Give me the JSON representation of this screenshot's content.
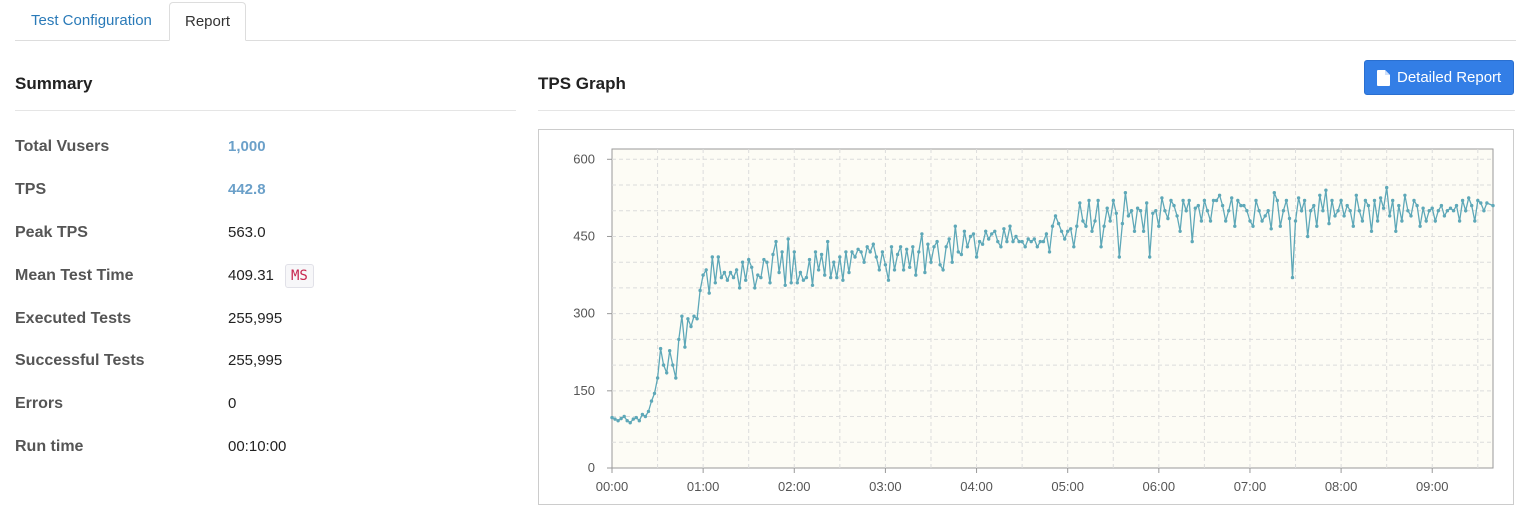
{
  "tabs": [
    {
      "label": "Test Configuration",
      "active": false
    },
    {
      "label": "Report",
      "active": true
    }
  ],
  "summary": {
    "title": "Summary",
    "rows": [
      {
        "label": "Total Vusers",
        "value": "1,000"
      },
      {
        "label": "TPS",
        "value": "442.8"
      },
      {
        "label": "Peak TPS",
        "value": "563.0"
      },
      {
        "label": "Mean Test Time",
        "value": "409.31",
        "unit": "MS"
      },
      {
        "label": "Executed Tests",
        "value": "255,995"
      },
      {
        "label": "Successful Tests",
        "value": "255,995"
      },
      {
        "label": "Errors",
        "value": "0"
      },
      {
        "label": "Run time",
        "value": "00:10:00"
      }
    ]
  },
  "graph": {
    "title": "TPS Graph",
    "detail_button_label": "Detailed Report",
    "detail_button_icon": "file-icon"
  },
  "colors": {
    "accent": "#337ee6",
    "link_value": "#6ba0c9",
    "series_line": "#5ea8b8",
    "plot_background": "#fdfcf5",
    "unit_badge_text": "#c7254e"
  },
  "chart_data": {
    "type": "line",
    "title": "",
    "xlabel": "",
    "ylabel": "",
    "x_tick_labels": [
      "00:00",
      "01:00",
      "02:00",
      "03:00",
      "04:00",
      "05:00",
      "06:00",
      "07:00",
      "08:00",
      "09:00"
    ],
    "x_unit": "seconds",
    "xlim": [
      0,
      580
    ],
    "ylim": [
      0,
      620
    ],
    "y_ticks": [
      0,
      150,
      300,
      450,
      600
    ],
    "grid": true,
    "legend": "none",
    "series": [
      {
        "name": "",
        "values": [
          [
            0,
            98
          ],
          [
            2,
            95
          ],
          [
            4,
            92
          ],
          [
            6,
            96
          ],
          [
            8,
            100
          ],
          [
            10,
            92
          ],
          [
            12,
            88
          ],
          [
            14,
            95
          ],
          [
            16,
            98
          ],
          [
            18,
            92
          ],
          [
            20,
            104
          ],
          [
            22,
            100
          ],
          [
            24,
            110
          ],
          [
            26,
            130
          ],
          [
            28,
            145
          ],
          [
            30,
            175
          ],
          [
            32,
            232
          ],
          [
            34,
            200
          ],
          [
            36,
            185
          ],
          [
            38,
            228
          ],
          [
            40,
            200
          ],
          [
            42,
            175
          ],
          [
            44,
            250
          ],
          [
            46,
            295
          ],
          [
            48,
            235
          ],
          [
            50,
            290
          ],
          [
            52,
            275
          ],
          [
            54,
            295
          ],
          [
            56,
            290
          ],
          [
            58,
            345
          ],
          [
            60,
            375
          ],
          [
            62,
            385
          ],
          [
            64,
            340
          ],
          [
            66,
            410
          ],
          [
            68,
            360
          ],
          [
            70,
            410
          ],
          [
            72,
            370
          ],
          [
            74,
            380
          ],
          [
            76,
            365
          ],
          [
            78,
            380
          ],
          [
            80,
            370
          ],
          [
            82,
            385
          ],
          [
            84,
            350
          ],
          [
            86,
            400
          ],
          [
            88,
            365
          ],
          [
            90,
            405
          ],
          [
            92,
            390
          ],
          [
            94,
            350
          ],
          [
            96,
            375
          ],
          [
            98,
            370
          ],
          [
            100,
            405
          ],
          [
            102,
            400
          ],
          [
            104,
            360
          ],
          [
            106,
            415
          ],
          [
            108,
            440
          ],
          [
            110,
            380
          ],
          [
            112,
            420
          ],
          [
            114,
            355
          ],
          [
            116,
            445
          ],
          [
            118,
            360
          ],
          [
            120,
            420
          ],
          [
            122,
            360
          ],
          [
            124,
            380
          ],
          [
            126,
            365
          ],
          [
            128,
            370
          ],
          [
            130,
            405
          ],
          [
            132,
            355
          ],
          [
            134,
            420
          ],
          [
            136,
            385
          ],
          [
            138,
            415
          ],
          [
            140,
            375
          ],
          [
            142,
            440
          ],
          [
            144,
            370
          ],
          [
            146,
            400
          ],
          [
            148,
            370
          ],
          [
            150,
            410
          ],
          [
            152,
            365
          ],
          [
            154,
            420
          ],
          [
            156,
            380
          ],
          [
            158,
            420
          ],
          [
            160,
            410
          ],
          [
            162,
            425
          ],
          [
            164,
            420
          ],
          [
            166,
            400
          ],
          [
            168,
            430
          ],
          [
            170,
            420
          ],
          [
            172,
            435
          ],
          [
            174,
            410
          ],
          [
            176,
            385
          ],
          [
            178,
            420
          ],
          [
            180,
            395
          ],
          [
            182,
            365
          ],
          [
            184,
            430
          ],
          [
            186,
            385
          ],
          [
            188,
            415
          ],
          [
            190,
            430
          ],
          [
            192,
            385
          ],
          [
            194,
            425
          ],
          [
            196,
            390
          ],
          [
            198,
            430
          ],
          [
            200,
            375
          ],
          [
            202,
            420
          ],
          [
            204,
            455
          ],
          [
            206,
            380
          ],
          [
            208,
            435
          ],
          [
            210,
            400
          ],
          [
            212,
            430
          ],
          [
            214,
            440
          ],
          [
            216,
            395
          ],
          [
            218,
            385
          ],
          [
            220,
            430
          ],
          [
            222,
            445
          ],
          [
            224,
            400
          ],
          [
            226,
            470
          ],
          [
            228,
            420
          ],
          [
            230,
            415
          ],
          [
            232,
            460
          ],
          [
            234,
            430
          ],
          [
            236,
            450
          ],
          [
            238,
            455
          ],
          [
            240,
            410
          ],
          [
            242,
            440
          ],
          [
            244,
            435
          ],
          [
            246,
            460
          ],
          [
            248,
            445
          ],
          [
            250,
            455
          ],
          [
            252,
            460
          ],
          [
            254,
            440
          ],
          [
            256,
            430
          ],
          [
            258,
            465
          ],
          [
            260,
            440
          ],
          [
            262,
            470
          ],
          [
            264,
            440
          ],
          [
            266,
            450
          ],
          [
            268,
            440
          ],
          [
            270,
            440
          ],
          [
            272,
            430
          ],
          [
            274,
            445
          ],
          [
            276,
            440
          ],
          [
            278,
            445
          ],
          [
            280,
            430
          ],
          [
            282,
            440
          ],
          [
            284,
            440
          ],
          [
            286,
            455
          ],
          [
            288,
            420
          ],
          [
            290,
            470
          ],
          [
            292,
            490
          ],
          [
            294,
            475
          ],
          [
            296,
            460
          ],
          [
            298,
            445
          ],
          [
            300,
            460
          ],
          [
            302,
            465
          ],
          [
            304,
            430
          ],
          [
            306,
            470
          ],
          [
            308,
            515
          ],
          [
            310,
            480
          ],
          [
            312,
            470
          ],
          [
            314,
            520
          ],
          [
            316,
            460
          ],
          [
            318,
            480
          ],
          [
            320,
            520
          ],
          [
            322,
            430
          ],
          [
            324,
            470
          ],
          [
            326,
            505
          ],
          [
            328,
            480
          ],
          [
            330,
            520
          ],
          [
            332,
            495
          ],
          [
            334,
            410
          ],
          [
            336,
            475
          ],
          [
            338,
            535
          ],
          [
            340,
            490
          ],
          [
            342,
            500
          ],
          [
            344,
            460
          ],
          [
            346,
            505
          ],
          [
            348,
            500
          ],
          [
            350,
            460
          ],
          [
            352,
            515
          ],
          [
            354,
            410
          ],
          [
            356,
            495
          ],
          [
            358,
            500
          ],
          [
            360,
            470
          ],
          [
            362,
            525
          ],
          [
            364,
            500
          ],
          [
            366,
            485
          ],
          [
            368,
            520
          ],
          [
            370,
            510
          ],
          [
            372,
            490
          ],
          [
            374,
            460
          ],
          [
            376,
            520
          ],
          [
            378,
            500
          ],
          [
            380,
            520
          ],
          [
            382,
            440
          ],
          [
            384,
            505
          ],
          [
            386,
            510
          ],
          [
            388,
            480
          ],
          [
            390,
            520
          ],
          [
            392,
            500
          ],
          [
            394,
            480
          ],
          [
            396,
            520
          ],
          [
            398,
            520
          ],
          [
            400,
            530
          ],
          [
            402,
            510
          ],
          [
            404,
            480
          ],
          [
            406,
            500
          ],
          [
            408,
            525
          ],
          [
            410,
            470
          ],
          [
            412,
            520
          ],
          [
            414,
            510
          ],
          [
            416,
            510
          ],
          [
            418,
            500
          ],
          [
            420,
            480
          ],
          [
            422,
            470
          ],
          [
            424,
            520
          ],
          [
            426,
            500
          ],
          [
            428,
            480
          ],
          [
            430,
            490
          ],
          [
            432,
            500
          ],
          [
            434,
            465
          ],
          [
            436,
            535
          ],
          [
            438,
            520
          ],
          [
            440,
            470
          ],
          [
            442,
            500
          ],
          [
            444,
            520
          ],
          [
            446,
            485
          ],
          [
            448,
            370
          ],
          [
            450,
            480
          ],
          [
            452,
            525
          ],
          [
            454,
            500
          ],
          [
            456,
            520
          ],
          [
            458,
            450
          ],
          [
            460,
            500
          ],
          [
            462,
            510
          ],
          [
            464,
            470
          ],
          [
            466,
            530
          ],
          [
            468,
            500
          ],
          [
            470,
            540
          ],
          [
            472,
            475
          ],
          [
            474,
            520
          ],
          [
            476,
            490
          ],
          [
            478,
            500
          ],
          [
            480,
            520
          ],
          [
            482,
            490
          ],
          [
            484,
            510
          ],
          [
            486,
            500
          ],
          [
            488,
            470
          ],
          [
            490,
            530
          ],
          [
            492,
            500
          ],
          [
            494,
            480
          ],
          [
            496,
            520
          ],
          [
            498,
            510
          ],
          [
            500,
            460
          ],
          [
            502,
            520
          ],
          [
            504,
            480
          ],
          [
            506,
            525
          ],
          [
            508,
            505
          ],
          [
            510,
            545
          ],
          [
            512,
            490
          ],
          [
            514,
            520
          ],
          [
            516,
            460
          ],
          [
            518,
            510
          ],
          [
            520,
            480
          ],
          [
            522,
            530
          ],
          [
            524,
            500
          ],
          [
            526,
            490
          ],
          [
            528,
            520
          ],
          [
            530,
            510
          ],
          [
            532,
            470
          ],
          [
            534,
            505
          ],
          [
            536,
            480
          ],
          [
            538,
            500
          ],
          [
            540,
            505
          ],
          [
            542,
            480
          ],
          [
            544,
            500
          ],
          [
            546,
            510
          ],
          [
            548,
            490
          ],
          [
            550,
            500
          ],
          [
            552,
            505
          ],
          [
            554,
            500
          ],
          [
            556,
            510
          ],
          [
            558,
            480
          ],
          [
            560,
            520
          ],
          [
            562,
            500
          ],
          [
            564,
            525
          ],
          [
            566,
            510
          ],
          [
            568,
            480
          ],
          [
            570,
            520
          ],
          [
            572,
            515
          ],
          [
            574,
            500
          ],
          [
            576,
            515
          ],
          [
            580,
            510
          ]
        ]
      }
    ]
  }
}
